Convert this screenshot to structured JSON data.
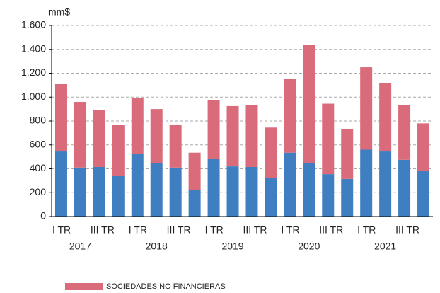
{
  "chart_data": {
    "type": "stacked_bar",
    "unit_label": "mm$",
    "categories": [
      "I TR",
      null,
      "III TR",
      null,
      "I TR",
      null,
      "III TR",
      null,
      "I TR",
      null,
      "III TR",
      null,
      "I TR",
      null,
      "III TR",
      null,
      "I TR",
      null,
      "III TR",
      null
    ],
    "groups": [
      "2017",
      "2018",
      "2019",
      "2020",
      "2021"
    ],
    "series": [
      {
        "color": "#3f7fc1",
        "values": [
          545,
          410,
          415,
          340,
          525,
          445,
          410,
          220,
          485,
          420,
          415,
          320,
          535,
          445,
          355,
          315,
          560,
          545,
          475,
          385
        ]
      },
      {
        "name": "SOCIEDADES NO FINANCIERAS",
        "color": "#d96b7b",
        "values": [
          565,
          550,
          475,
          430,
          465,
          455,
          355,
          315,
          490,
          505,
          520,
          425,
          620,
          990,
          590,
          420,
          690,
          575,
          460,
          395
        ]
      }
    ],
    "ylim": [
      0,
      1600
    ],
    "yticks": [
      0,
      200,
      400,
      600,
      800,
      {
        "value": 1000,
        "label": "1.000"
      },
      {
        "value": 1200,
        "label": "1.200"
      },
      {
        "value": 1400,
        "label": "1.400"
      },
      {
        "value": 1600,
        "label": "1.600"
      }
    ],
    "grid": true
  }
}
